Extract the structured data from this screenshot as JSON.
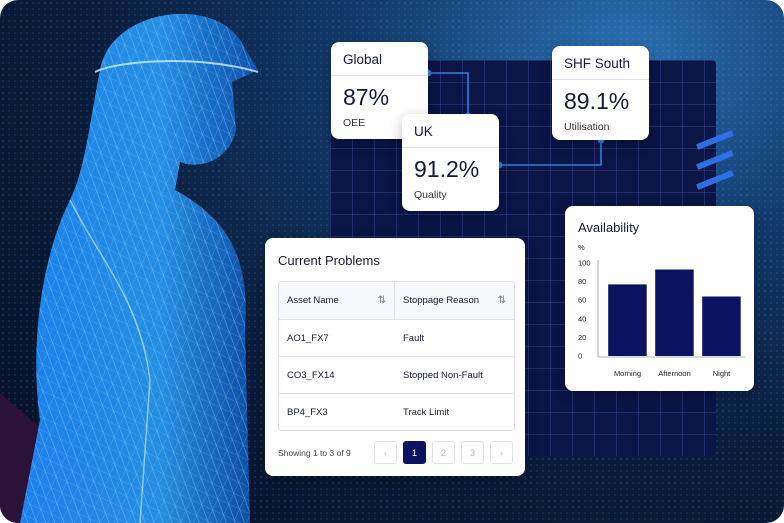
{
  "kpis": {
    "global": {
      "title": "Global",
      "value": "87%",
      "label": "OEE"
    },
    "uk": {
      "title": "UK",
      "value": "91.2%",
      "label": "Quality"
    },
    "shf": {
      "title": "SHF South",
      "value": "89.1%",
      "label": "Utilisation"
    }
  },
  "problems": {
    "title": "Current Problems",
    "columns": [
      "Asset Name",
      "Stoppage Reason"
    ],
    "rows": [
      [
        "AO1_FX7",
        "Fault"
      ],
      [
        "CO3_FX14",
        "Stopped Non-Fault"
      ],
      [
        "BP4_FX3",
        "Track Limit"
      ]
    ],
    "showing": "Showing 1 to 3 of 9",
    "pages": [
      "1",
      "2",
      "3"
    ],
    "current_page": 1,
    "prev_icon": "chevron-left-icon",
    "next_icon": "chevron-right-icon",
    "sort_icon": "sort-arrows-icon"
  },
  "chart_data": {
    "type": "bar",
    "title": "Availability",
    "ylabel": "%",
    "categories": [
      "Morning",
      "Afternoon",
      "Night"
    ],
    "values": [
      77,
      93,
      64
    ],
    "ylim": [
      0,
      100
    ],
    "yticks": [
      0,
      20,
      40,
      60,
      80,
      100
    ],
    "bar_color": "#0a135f",
    "grid": false
  },
  "colors": {
    "accent": "#0a135f",
    "connector": "#2f7fe0",
    "stripe": "#2e6fe8"
  }
}
